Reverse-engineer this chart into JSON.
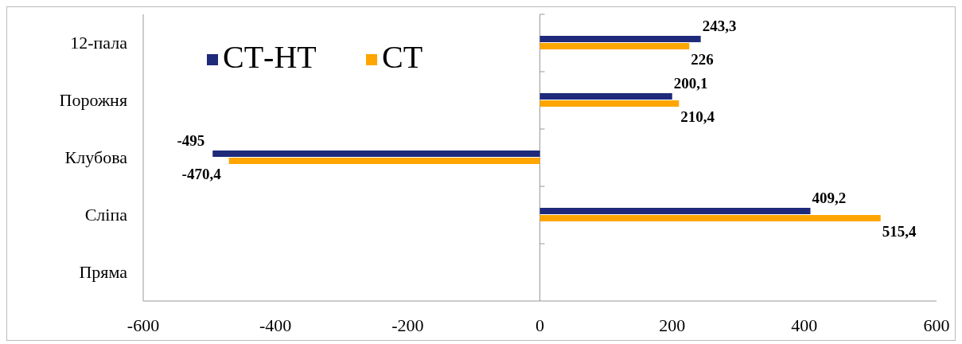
{
  "chart_data": {
    "type": "bar",
    "orientation": "horizontal",
    "categories": [
      "12-пала",
      "Порожня",
      "Клубова",
      "Сліпа",
      "Пряма"
    ],
    "series": [
      {
        "name": "СТ-НТ",
        "color": "#1f2a7a",
        "values": [
          243.3,
          200.1,
          -495,
          409.2,
          null
        ],
        "value_labels": [
          "243,3",
          "200,1",
          "-495",
          "409,2",
          null
        ]
      },
      {
        "name": "СТ",
        "color": "#ffa500",
        "values": [
          226,
          210.4,
          -470.4,
          515.4,
          null
        ],
        "value_labels": [
          "226",
          "210,4",
          "-470,4",
          "515,4",
          null
        ]
      }
    ],
    "xlim": [
      -600,
      600
    ],
    "xticks": [
      -600,
      -400,
      -200,
      0,
      200,
      400,
      600
    ],
    "legend": "top left"
  }
}
